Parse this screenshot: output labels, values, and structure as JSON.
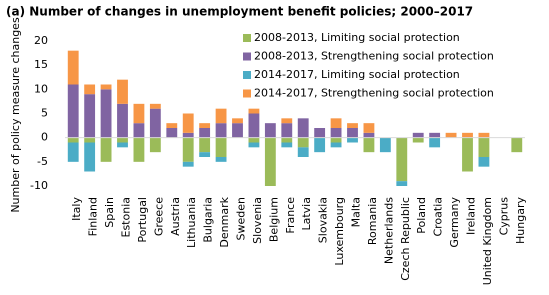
{
  "chart_data": {
    "type": "stacked_bar",
    "title": "(a) Number of changes in unemployment benefit policies; 2000–2017",
    "y_label": "Number of policy measure changes",
    "categories": [
      "Italy",
      "Finland",
      "Spain",
      "Estonia",
      "Portugal",
      "Greece",
      "Austria",
      "Lithuania",
      "Bulgaria",
      "Denmark",
      "Sweden",
      "Slovenia",
      "Belgium",
      "France",
      "Latvia",
      "Slovakia",
      "Luxembourg",
      "Malta",
      "Romania",
      "Netherlands",
      "Czech Republic",
      "Poland",
      "Croatia",
      "Germany",
      "Ireland",
      "United Kingdom",
      "Cyprus",
      "Hungary"
    ],
    "series": [
      {
        "name": "2008-2013, Limiting social protection",
        "color": "#9bbb59",
        "values": [
          -1,
          -1,
          -5,
          -1,
          -5,
          -3,
          0,
          -5,
          -3,
          -4,
          0,
          -1,
          -10,
          -1,
          -2,
          0,
          -1,
          0,
          -3,
          0,
          -9,
          -1,
          0,
          0,
          -7,
          -4,
          0,
          -3
        ]
      },
      {
        "name": "2008-2013, Strengthening social protection",
        "color": "#8064a2",
        "values": [
          11,
          9,
          10,
          7,
          3,
          6,
          2,
          1,
          2,
          3,
          3,
          5,
          3,
          3,
          4,
          2,
          2,
          2,
          1,
          0,
          0,
          1,
          1,
          0,
          0,
          0,
          0,
          0
        ]
      },
      {
        "name": "2014-2017, Limiting social protection",
        "color": "#4bacc6",
        "values": [
          -4,
          -6,
          0,
          -1,
          0,
          0,
          0,
          -1,
          -1,
          -1,
          0,
          -1,
          0,
          -1,
          -2,
          -3,
          -1,
          -1,
          0,
          -3,
          -1,
          0,
          -2,
          0,
          0,
          -2,
          0,
          0
        ]
      },
      {
        "name": "2014-2017, Strengthening social protection",
        "color": "#f79646",
        "values": [
          7,
          2,
          1,
          5,
          4,
          1,
          1,
          4,
          1,
          3,
          1,
          1,
          0,
          1,
          0,
          0,
          2,
          1,
          2,
          0,
          0,
          0,
          0,
          1,
          1,
          1,
          0,
          0
        ]
      }
    ],
    "ylim": [
      -10,
      20
    ],
    "yticks": [
      -10,
      -5,
      0,
      5,
      10,
      15,
      20
    ],
    "grid": false,
    "legend": "upper right"
  }
}
